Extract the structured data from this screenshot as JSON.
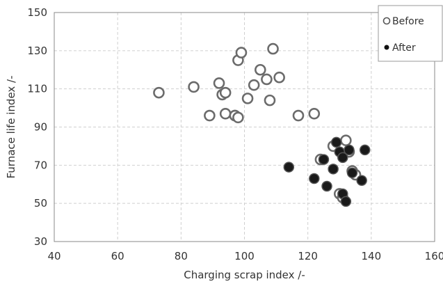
{
  "chart_data": {
    "type": "scatter",
    "title": "",
    "xlabel": "Charging scrap index /-",
    "ylabel": "Furnace life index /-",
    "xlim": [
      40,
      160
    ],
    "ylim": [
      30,
      150
    ],
    "xticks": [
      40,
      60,
      80,
      100,
      120,
      140,
      160
    ],
    "yticks": [
      30,
      50,
      70,
      90,
      110,
      130,
      150
    ],
    "grid": true,
    "legend_position": "top-right",
    "series": [
      {
        "name": "Before",
        "marker": "open-circle",
        "color": "#8c8c8c",
        "points": [
          [
            73,
            108
          ],
          [
            84,
            111
          ],
          [
            89,
            96
          ],
          [
            92,
            113
          ],
          [
            93,
            107
          ],
          [
            94,
            97
          ],
          [
            94,
            108
          ],
          [
            97,
            96
          ],
          [
            97,
            96
          ],
          [
            98,
            95
          ],
          [
            98,
            125
          ],
          [
            99,
            129
          ],
          [
            101,
            105
          ],
          [
            103,
            112
          ],
          [
            105,
            120
          ],
          [
            107,
            115
          ],
          [
            108,
            104
          ],
          [
            109,
            131
          ],
          [
            111,
            116
          ],
          [
            117,
            96
          ],
          [
            122,
            97
          ],
          [
            124,
            73
          ],
          [
            128,
            80
          ],
          [
            130,
            55
          ],
          [
            131,
            53
          ],
          [
            132,
            83
          ],
          [
            133,
            77
          ],
          [
            134,
            67
          ],
          [
            135,
            65
          ]
        ]
      },
      {
        "name": "After",
        "marker": "filled-circle",
        "color": "#1a1a1a",
        "points": [
          [
            114,
            69
          ],
          [
            122,
            63
          ],
          [
            125,
            73
          ],
          [
            126,
            59
          ],
          [
            128,
            68
          ],
          [
            129,
            82
          ],
          [
            130,
            77
          ],
          [
            131,
            55
          ],
          [
            131,
            74
          ],
          [
            132,
            51
          ],
          [
            133,
            78
          ],
          [
            134,
            66
          ],
          [
            137,
            62
          ],
          [
            138,
            78
          ]
        ]
      }
    ]
  }
}
